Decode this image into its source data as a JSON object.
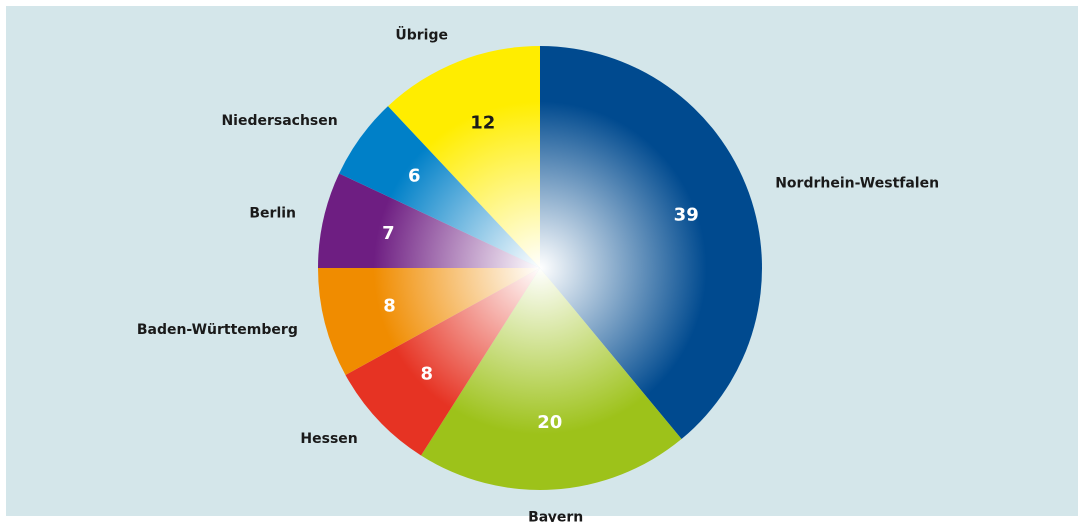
{
  "chart_data": {
    "type": "pie",
    "categories": [
      "Nordrhein-Westfalen",
      "Bayern",
      "Hessen",
      "Baden-Württemberg",
      "Berlin",
      "Niedersachsen",
      "Übrige"
    ],
    "values": [
      39,
      20,
      8,
      8,
      7,
      6,
      12
    ],
    "colors": [
      "#004a8f",
      "#9dc21a",
      "#e63323",
      "#f08c00",
      "#6e1e82",
      "#0080c8",
      "#ffed00"
    ]
  }
}
